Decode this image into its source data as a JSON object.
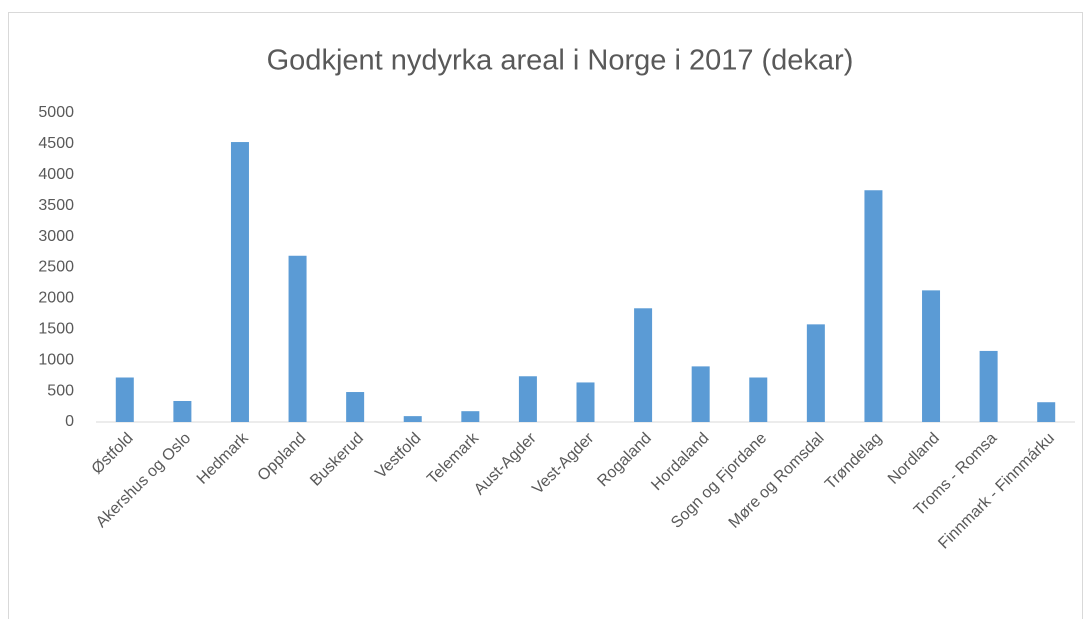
{
  "chart_data": {
    "type": "bar",
    "title": "Godkjent nydyrka areal i Norge i 2017 (dekar)",
    "categories": [
      "Østfold",
      "Akershus og Oslo",
      "Hedmark",
      "Oppland",
      "Buskerud",
      "Vestfold",
      "Telemark",
      "Aust-Agder",
      "Vest-Agder",
      "Rogaland",
      "Hordaland",
      "Sogn og Fjordane",
      "Møre og Romsdal",
      "Trøndelag",
      "Nordland",
      "Troms - Romsa",
      "Finnmark - Finnmárku"
    ],
    "values": [
      720,
      340,
      4530,
      2690,
      485,
      95,
      175,
      740,
      640,
      1840,
      900,
      720,
      1580,
      3750,
      2130,
      1150,
      320
    ],
    "color": "#5b9bd5",
    "ylim": [
      0,
      5000
    ],
    "yticks": [
      0,
      500,
      1000,
      1500,
      2000,
      2500,
      3000,
      3500,
      4000,
      4500,
      5000
    ],
    "grid": false
  }
}
